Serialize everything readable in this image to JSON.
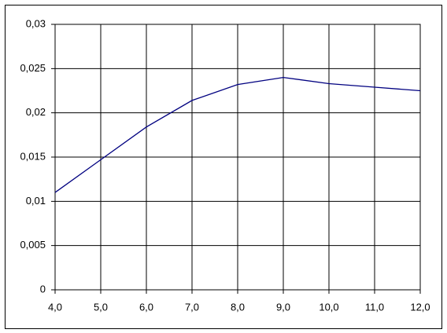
{
  "chart_data": {
    "type": "line",
    "x": [
      4,
      5,
      6,
      7,
      8,
      9,
      10,
      11,
      12
    ],
    "series": [
      {
        "name": null,
        "color": "#000080",
        "values": [
          0.011,
          0.0147,
          0.0184,
          0.0214,
          0.0232,
          0.024,
          0.0233,
          0.0229,
          0.0225
        ]
      }
    ],
    "xlim": [
      4,
      12
    ],
    "xticks": [
      {
        "value": 4,
        "label": "4,0"
      },
      {
        "value": 5,
        "label": "5,0"
      },
      {
        "value": 6,
        "label": "6,0"
      },
      {
        "value": 7,
        "label": "7,0"
      },
      {
        "value": 8,
        "label": "8,0"
      },
      {
        "value": 9,
        "label": "9,0"
      },
      {
        "value": 10,
        "label": "10,0"
      },
      {
        "value": 11,
        "label": "11,0"
      },
      {
        "value": 12,
        "label": "12,0"
      }
    ],
    "ylim": [
      0,
      0.03
    ],
    "yticks": [
      0,
      {
        "value": 0.005,
        "label": "0,005"
      },
      {
        "value": 0.01,
        "label": "0,01"
      },
      {
        "value": 0.015,
        "label": "0,015"
      },
      {
        "value": 0.02,
        "label": "0,02"
      },
      {
        "value": 0.025,
        "label": "0,025"
      },
      {
        "value": 0.03,
        "label": "0,03"
      }
    ],
    "grid": true
  }
}
